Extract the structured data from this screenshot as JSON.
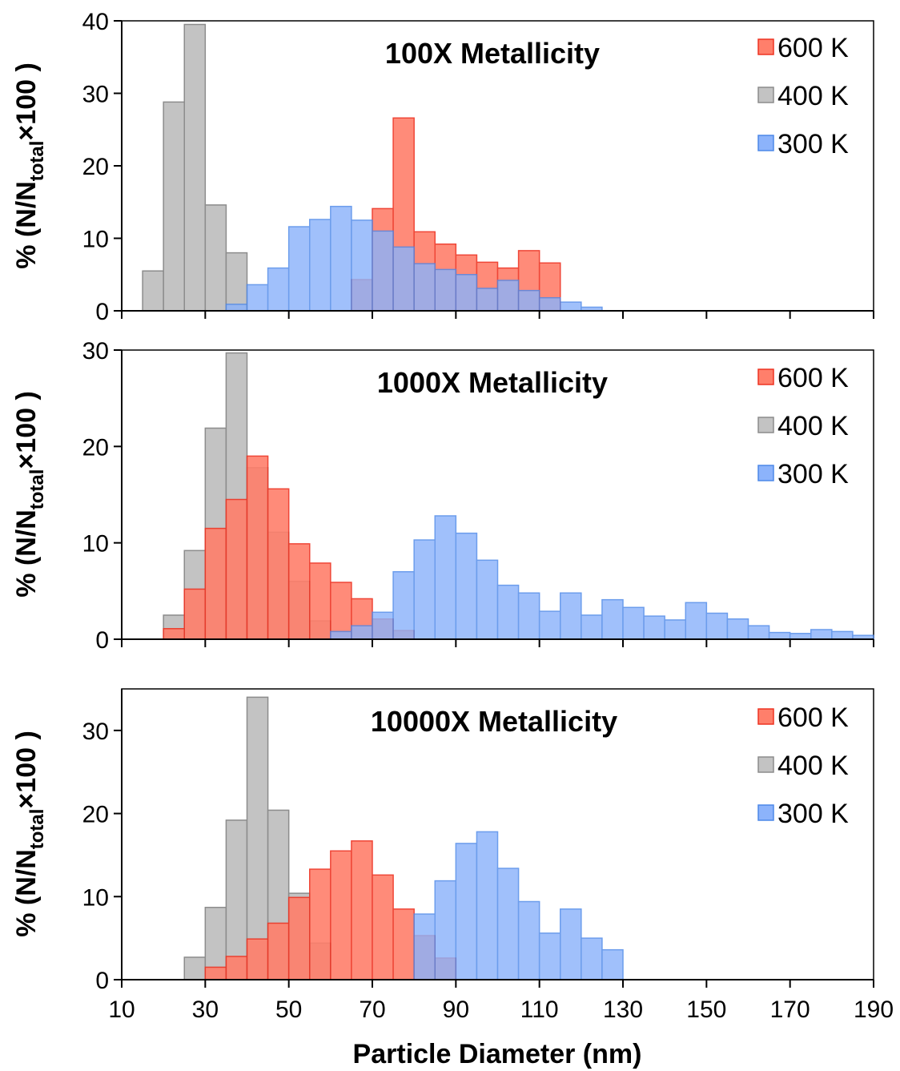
{
  "chart_data": [
    {
      "type": "bar",
      "title": "100X Metallicity",
      "ylabel": "% (N/N<sub>total</sub>×100 )",
      "ylabel_parts": [
        "% (N/N",
        "total",
        "×100 )"
      ],
      "ylim": [
        0,
        40
      ],
      "yticks": [
        0,
        10,
        20,
        30,
        40
      ],
      "xlim": [
        10,
        190
      ],
      "bin_width": 5,
      "bin_starts": [
        15,
        20,
        25,
        30,
        35,
        40,
        45,
        50,
        55,
        60,
        65,
        70,
        75,
        80,
        85,
        90,
        95,
        100,
        105,
        110,
        115,
        120
      ],
      "legend_position": "top-right",
      "series": [
        {
          "name": "600 K",
          "color": "#ff7f6b",
          "edge": "#ee3322",
          "values": [
            0,
            0,
            0,
            0,
            0,
            0,
            0,
            0,
            0,
            0,
            4.3,
            14.1,
            26.6,
            10.9,
            9.2,
            7.7,
            6.7,
            5.9,
            8.3,
            6.6,
            0,
            0
          ]
        },
        {
          "name": "400 K",
          "color": "#c3c3c3",
          "edge": "#8c8c8c",
          "values": [
            5.5,
            28.8,
            39.5,
            14.6,
            8.0,
            0,
            0,
            0,
            0,
            0,
            0,
            0,
            0,
            0,
            0,
            0,
            0,
            0,
            0,
            0,
            0,
            0
          ]
        },
        {
          "name": "300 K",
          "color": "#8cb3fb",
          "edge": "#4d88e8",
          "values": [
            0,
            0,
            0,
            0,
            0.9,
            3.6,
            5.9,
            11.6,
            12.6,
            14.4,
            12.5,
            11.0,
            8.8,
            6.5,
            5.7,
            5.0,
            3.1,
            4.2,
            2.8,
            1.8,
            1.2,
            0.5
          ]
        }
      ]
    },
    {
      "type": "bar",
      "title": "1000X Metallicity",
      "ylabel": "% (N/N<sub>total</sub>×100 )",
      "ylabel_parts": [
        "% (N/N",
        "total",
        "×100 )"
      ],
      "ylim": [
        0,
        30
      ],
      "yticks": [
        0,
        10,
        20,
        30
      ],
      "xlim": [
        10,
        190
      ],
      "bin_width": 5,
      "bin_starts": [
        20,
        25,
        30,
        35,
        40,
        45,
        50,
        55,
        60,
        65,
        70,
        75,
        80,
        85,
        90,
        95,
        100,
        105,
        110,
        115,
        120,
        125,
        130,
        135,
        140,
        145,
        150,
        155,
        160,
        165,
        170,
        175,
        180,
        185
      ],
      "legend_position": "top-right",
      "series": [
        {
          "name": "600 K",
          "color": "#ff7f6b",
          "edge": "#ee3322",
          "values": [
            1.1,
            5.2,
            11.5,
            14.5,
            19.0,
            15.6,
            9.9,
            7.9,
            5.9,
            4.2,
            2.1,
            0.9,
            0,
            0,
            0,
            0,
            0,
            0,
            0,
            0,
            0,
            0,
            0,
            0,
            0,
            0,
            0,
            0,
            0,
            0,
            0,
            0,
            0,
            0
          ]
        },
        {
          "name": "400 K",
          "color": "#c3c3c3",
          "edge": "#8c8c8c",
          "values": [
            2.5,
            9.2,
            21.9,
            29.7,
            17.8,
            11.1,
            6.0,
            1.9,
            0,
            0,
            0,
            0,
            0,
            0,
            0,
            0,
            0,
            0,
            0,
            0,
            0,
            0,
            0,
            0,
            0,
            0,
            0,
            0,
            0,
            0,
            0,
            0,
            0,
            0
          ]
        },
        {
          "name": "300 K",
          "color": "#8cb3fb",
          "edge": "#4d88e8",
          "values": [
            0,
            0,
            0,
            0,
            0,
            0,
            0,
            0,
            0.8,
            1.4,
            2.8,
            7.0,
            10.3,
            12.8,
            11.0,
            8.2,
            5.6,
            4.8,
            2.9,
            4.8,
            2.5,
            4.1,
            3.3,
            2.4,
            2.0,
            3.8,
            2.7,
            2.1,
            1.4,
            0.7,
            0.6,
            1.0,
            0.8,
            0.4
          ]
        }
      ]
    },
    {
      "type": "bar",
      "title": "10000X Metallicity",
      "ylabel": "% (N/N<sub>total</sub>×100 )",
      "ylabel_parts": [
        "% (N/N",
        "total",
        "×100 )"
      ],
      "ylim": [
        0,
        35
      ],
      "yticks": [
        0,
        10,
        20,
        30
      ],
      "xlim": [
        10,
        190
      ],
      "xticks": [
        10,
        30,
        50,
        70,
        90,
        110,
        130,
        150,
        170,
        190
      ],
      "xlabel": "Particle Diameter (nm)",
      "bin_width": 5,
      "bin_starts": [
        25,
        30,
        35,
        40,
        45,
        50,
        55,
        60,
        65,
        70,
        75,
        80,
        85,
        90,
        95,
        100,
        105,
        110,
        115,
        120,
        125
      ],
      "legend_position": "top-right",
      "series": [
        {
          "name": "600 K",
          "color": "#ff7f6b",
          "edge": "#ee3322",
          "values": [
            0,
            1.5,
            2.8,
            4.9,
            6.8,
            9.9,
            13.3,
            15.5,
            16.7,
            12.6,
            8.5,
            5.3,
            2.6,
            0,
            0,
            0,
            0,
            0,
            0,
            0,
            0
          ]
        },
        {
          "name": "400 K",
          "color": "#c3c3c3",
          "edge": "#8c8c8c",
          "values": [
            2.7,
            8.7,
            19.2,
            34.0,
            20.4,
            10.4,
            4.4,
            0,
            0,
            0,
            0,
            0,
            0,
            0,
            0,
            0,
            0,
            0,
            0,
            0,
            0
          ]
        },
        {
          "name": "300 K",
          "color": "#8cb3fb",
          "edge": "#4d88e8",
          "values": [
            0,
            0,
            0,
            0,
            0,
            0,
            0,
            0,
            0,
            0,
            0,
            7.9,
            11.9,
            16.4,
            17.8,
            13.4,
            9.4,
            5.6,
            8.5,
            5.0,
            3.6
          ]
        }
      ]
    }
  ]
}
